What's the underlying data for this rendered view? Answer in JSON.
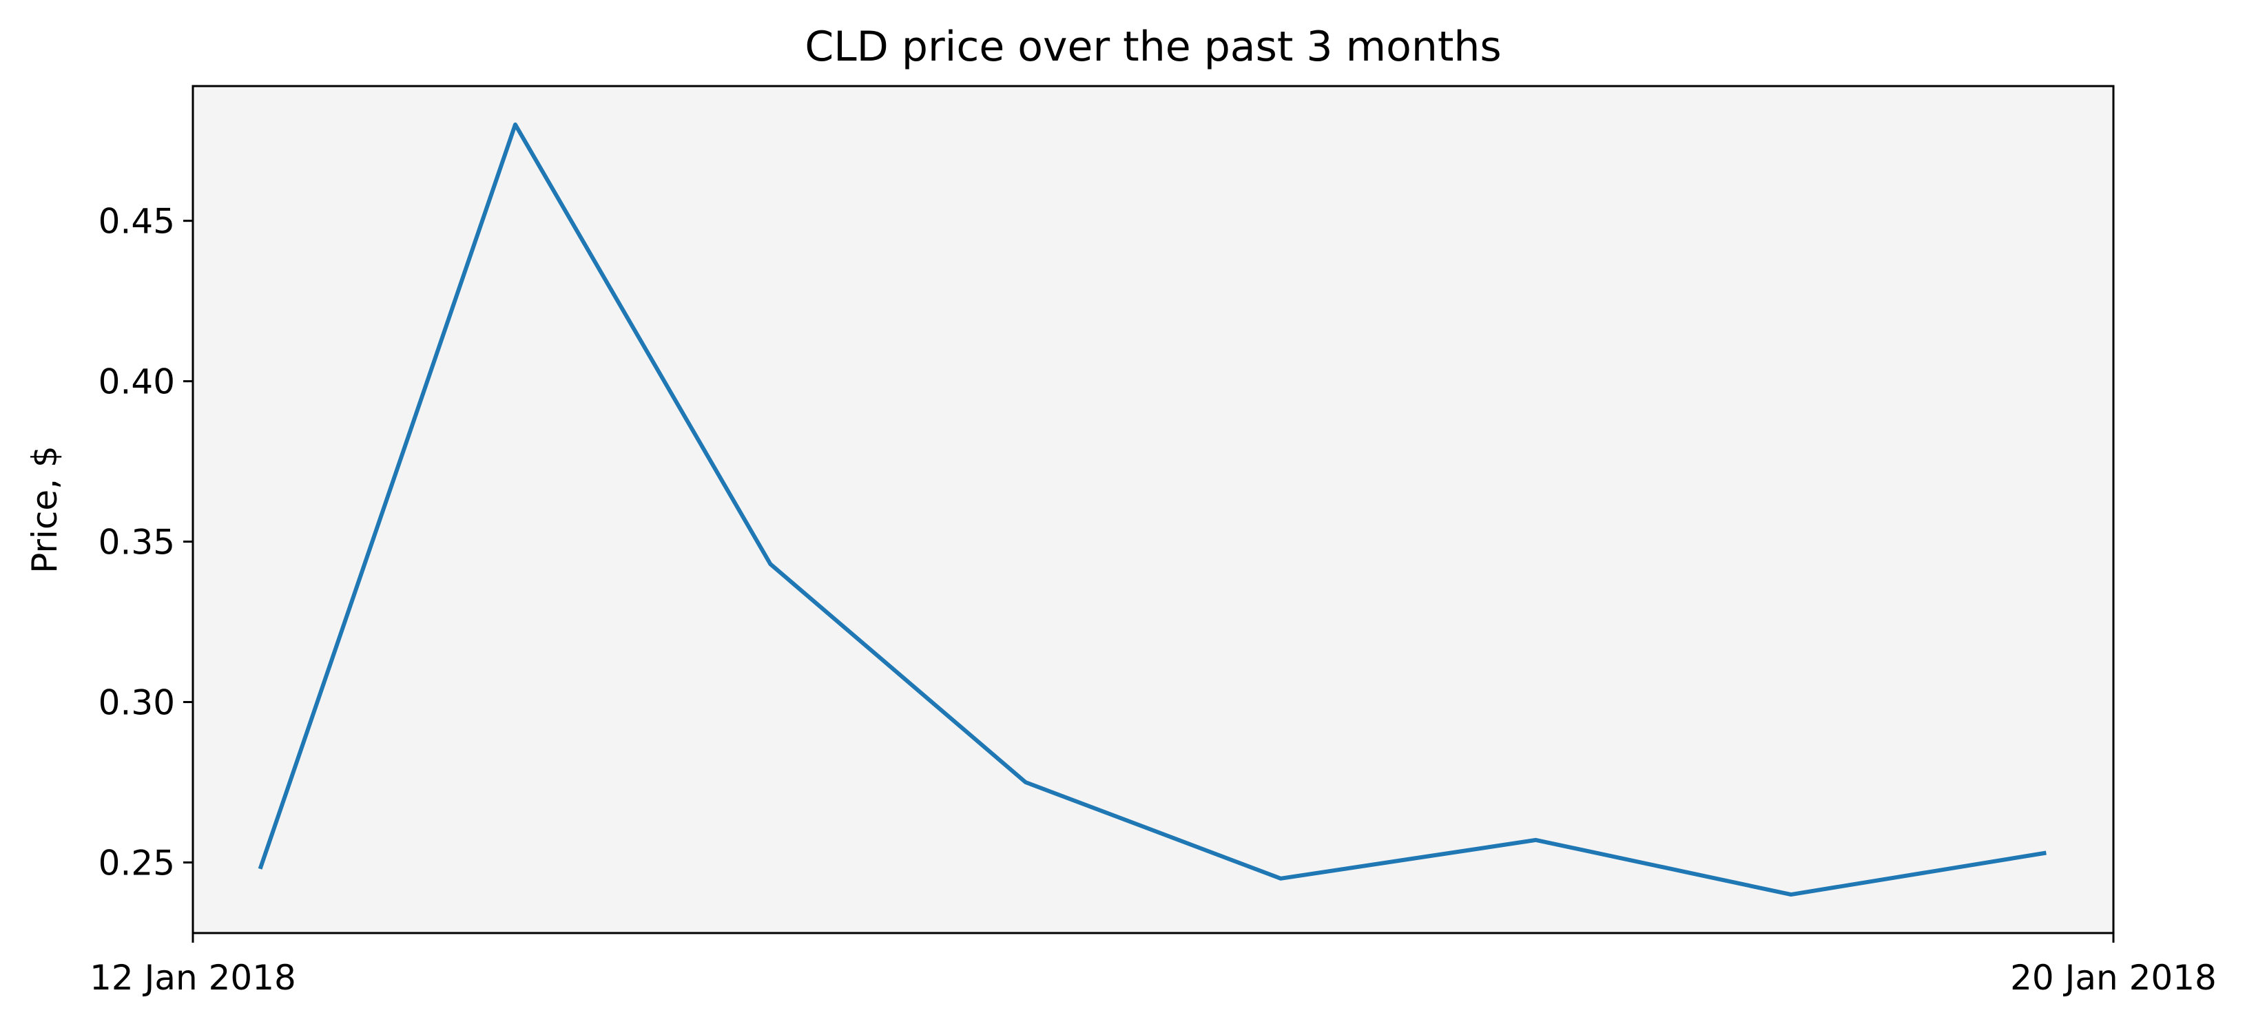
{
  "chart_data": {
    "type": "line",
    "title": "CLD price over the past 3 months",
    "xlabel": "",
    "ylabel": "Price, $",
    "x_tick_labels": [
      "12 Jan 2018",
      "20 Jan 2018"
    ],
    "y_ticks": [
      0.25,
      0.3,
      0.35,
      0.4,
      0.45
    ],
    "y_tick_labels": [
      "0.25",
      "0.30",
      "0.35",
      "0.40",
      "0.45"
    ],
    "xlim": [
      "12 Jan 2018",
      "20 Jan 2018"
    ],
    "ylim": [
      0.228,
      0.492
    ],
    "grid": false,
    "legend": "none",
    "series": [
      {
        "color": "#1f77b4",
        "x": [
          "2018-01-12",
          "2018-01-13",
          "2018-01-14",
          "2018-01-15",
          "2018-01-16",
          "2018-01-17",
          "2018-01-18",
          "2018-01-19"
        ],
        "values": [
          0.248,
          0.48,
          0.343,
          0.275,
          0.245,
          0.257,
          0.24,
          0.253
        ]
      }
    ],
    "plot_background": "#f4f4f4",
    "line_color": "#1f77b4"
  }
}
